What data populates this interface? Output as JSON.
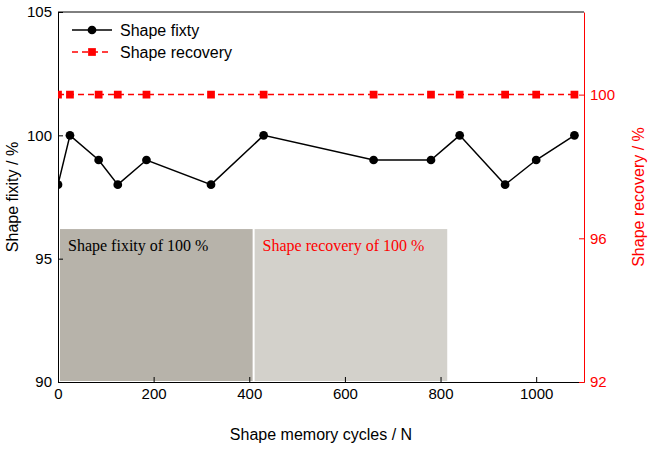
{
  "chart_data": {
    "type": "line",
    "x_label": "Shape memory cycles / N",
    "y_label": "Shape fixity / %",
    "y2_label": "Shape recovery / %",
    "x": [
      0,
      25,
      85,
      125,
      185,
      320,
      430,
      660,
      780,
      840,
      935,
      1000,
      1080
    ],
    "xlim": [
      0,
      1100
    ],
    "xticks": [
      0,
      200,
      400,
      600,
      800,
      1000
    ],
    "ylim": [
      90,
      105
    ],
    "yticks": [
      90,
      95,
      100,
      105
    ],
    "y2lim": [
      92,
      102.3
    ],
    "y2ticks": [
      92,
      96,
      100
    ],
    "series": [
      {
        "name": "Shape fixty",
        "color": "#000000",
        "marker": "circle",
        "line_style": "solid",
        "values": [
          98,
          100,
          99,
          98,
          99,
          98,
          100,
          99,
          99,
          100,
          98,
          99,
          100
        ]
      },
      {
        "name": "Shape recovery",
        "color": "#ff0000",
        "marker": "square",
        "line_style": "dashed",
        "axis": "y2",
        "values": [
          100,
          100,
          100,
          100,
          100,
          100,
          100,
          100,
          100,
          100,
          100,
          100,
          100
        ]
      }
    ],
    "legend": "upper left",
    "annotations": [
      {
        "text": "Shape fixity of 100 %",
        "color": "#000000"
      },
      {
        "text": "Shape recovery of 100 %",
        "color": "#ff0000"
      }
    ]
  }
}
